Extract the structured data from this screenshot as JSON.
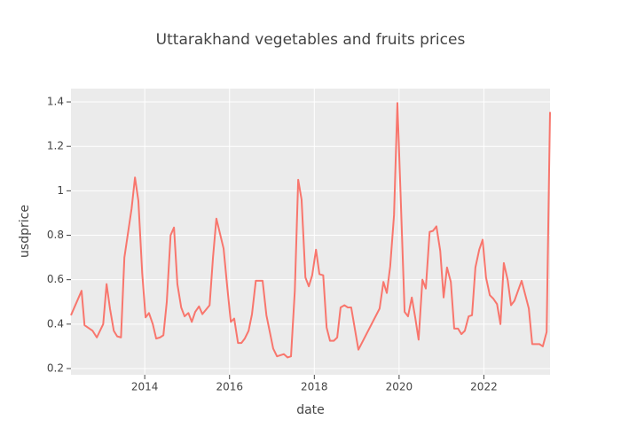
{
  "chart_data": {
    "type": "line",
    "title": "Uttarakhand vegetables and fruits prices",
    "xlabel": "date",
    "ylabel": "usdprice",
    "color": "#F8766D",
    "grid": true,
    "x": [
      2012.26,
      2012.51,
      2012.58,
      2012.77,
      2012.87,
      2013.02,
      2013.1,
      2013.18,
      2013.27,
      2013.35,
      2013.44,
      2013.52,
      2013.69,
      2013.77,
      2013.85,
      2013.94,
      2014.02,
      2014.1,
      2014.19,
      2014.27,
      2014.36,
      2014.44,
      2014.52,
      2014.61,
      2014.69,
      2014.77,
      2014.86,
      2014.94,
      2015.03,
      2015.11,
      2015.19,
      2015.28,
      2015.36,
      2015.53,
      2015.61,
      2015.69,
      2015.86,
      2015.95,
      2016.03,
      2016.11,
      2016.2,
      2016.28,
      2016.36,
      2016.45,
      2016.53,
      2016.62,
      2016.78,
      2016.87,
      2017.03,
      2017.12,
      2017.2,
      2017.28,
      2017.37,
      2017.45,
      2017.54,
      2017.62,
      2017.7,
      2017.79,
      2017.87,
      2017.95,
      2018.04,
      2018.12,
      2018.21,
      2018.29,
      2018.37,
      2018.46,
      2018.54,
      2018.62,
      2018.71,
      2018.79,
      2018.87,
      2019.04,
      2019.54,
      2019.63,
      2019.71,
      2019.79,
      2019.88,
      2019.96,
      2020.05,
      2020.13,
      2020.21,
      2020.3,
      2020.38,
      2020.46,
      2020.55,
      2020.63,
      2020.72,
      2020.8,
      2020.88,
      2020.97,
      2021.05,
      2021.13,
      2021.22,
      2021.3,
      2021.39,
      2021.47,
      2021.55,
      2021.64,
      2021.72,
      2021.8,
      2021.89,
      2021.97,
      2022.05,
      2022.14,
      2022.22,
      2022.31,
      2022.39,
      2022.47,
      2022.56,
      2022.64,
      2022.72,
      2022.89,
      2023.06,
      2023.14,
      2023.23,
      2023.31,
      2023.39,
      2023.48,
      2023.56
    ],
    "values": [
      0.44,
      0.55,
      0.395,
      0.37,
      0.34,
      0.4,
      0.58,
      0.47,
      0.37,
      0.345,
      0.34,
      0.7,
      0.92,
      1.06,
      0.955,
      0.63,
      0.43,
      0.45,
      0.4,
      0.335,
      0.34,
      0.35,
      0.5,
      0.8,
      0.835,
      0.58,
      0.475,
      0.435,
      0.45,
      0.41,
      0.455,
      0.48,
      0.445,
      0.485,
      0.7,
      0.875,
      0.74,
      0.56,
      0.41,
      0.425,
      0.315,
      0.315,
      0.335,
      0.37,
      0.445,
      0.595,
      0.595,
      0.44,
      0.29,
      0.255,
      0.26,
      0.265,
      0.25,
      0.255,
      0.55,
      1.05,
      0.96,
      0.61,
      0.57,
      0.62,
      0.735,
      0.625,
      0.62,
      0.385,
      0.325,
      0.325,
      0.34,
      0.475,
      0.485,
      0.475,
      0.475,
      0.285,
      0.47,
      0.59,
      0.54,
      0.66,
      0.89,
      1.395,
      0.9,
      0.455,
      0.435,
      0.52,
      0.43,
      0.33,
      0.6,
      0.56,
      0.815,
      0.82,
      0.84,
      0.73,
      0.52,
      0.655,
      0.59,
      0.38,
      0.38,
      0.355,
      0.37,
      0.435,
      0.44,
      0.655,
      0.735,
      0.78,
      0.61,
      0.53,
      0.515,
      0.49,
      0.4,
      0.675,
      0.6,
      0.485,
      0.505,
      0.595,
      0.47,
      0.31,
      0.31,
      0.31,
      0.3,
      0.365,
      1.355
    ],
    "xlim": [
      2012.26,
      2023.56
    ],
    "xticks": [
      2014,
      2016,
      2018,
      2020,
      2022
    ],
    "ylim": [
      0.172,
      1.46
    ],
    "yticks": [
      0.2,
      0.4,
      0.6,
      0.8,
      1,
      1.2,
      1.4
    ]
  }
}
